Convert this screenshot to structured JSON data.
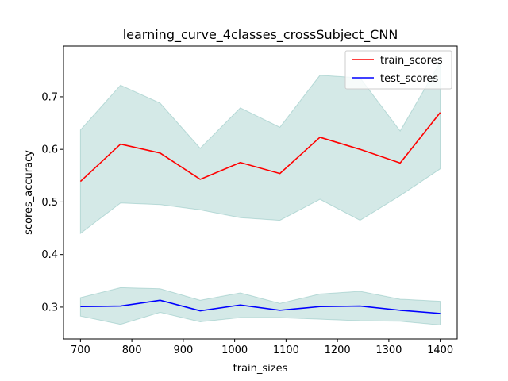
{
  "chart_data": {
    "type": "line",
    "title": "learning_curve_4classes_crossSubject_CNN",
    "xlabel": "train_sizes",
    "ylabel": "scores_accuracy",
    "xlim": [
      667,
      1433
    ],
    "ylim": [
      0.2395,
      0.7965
    ],
    "xticks": [
      700,
      800,
      900,
      1000,
      1100,
      1200,
      1300,
      1400
    ],
    "yticks": [
      0.3,
      0.4,
      0.5,
      0.6,
      0.7
    ],
    "ytick_labels": [
      "0.3",
      "0.4",
      "0.5",
      "0.6",
      "0.7"
    ],
    "x": [
      700,
      778,
      855,
      933,
      1011,
      1088,
      1166,
      1244,
      1322,
      1400
    ],
    "grid": false,
    "legend_position": "top-right",
    "series": [
      {
        "name": "train_scores",
        "color": "#ff0000",
        "values": [
          0.539,
          0.61,
          0.593,
          0.543,
          0.575,
          0.554,
          0.623,
          0.6,
          0.574,
          0.67
        ],
        "band_upper": [
          0.637,
          0.722,
          0.688,
          0.602,
          0.679,
          0.642,
          0.741,
          0.736,
          0.635,
          0.766
        ],
        "band_lower": [
          0.44,
          0.498,
          0.495,
          0.485,
          0.47,
          0.465,
          0.505,
          0.465,
          0.512,
          0.563
        ]
      },
      {
        "name": "test_scores",
        "color": "#0000ff",
        "values": [
          0.301,
          0.302,
          0.313,
          0.293,
          0.304,
          0.294,
          0.301,
          0.302,
          0.294,
          0.288
        ],
        "band_upper": [
          0.318,
          0.337,
          0.335,
          0.313,
          0.327,
          0.307,
          0.325,
          0.33,
          0.315,
          0.311
        ],
        "band_lower": [
          0.283,
          0.267,
          0.29,
          0.272,
          0.28,
          0.28,
          0.277,
          0.274,
          0.273,
          0.266
        ]
      }
    ],
    "band_color": "#6fb5ae"
  }
}
